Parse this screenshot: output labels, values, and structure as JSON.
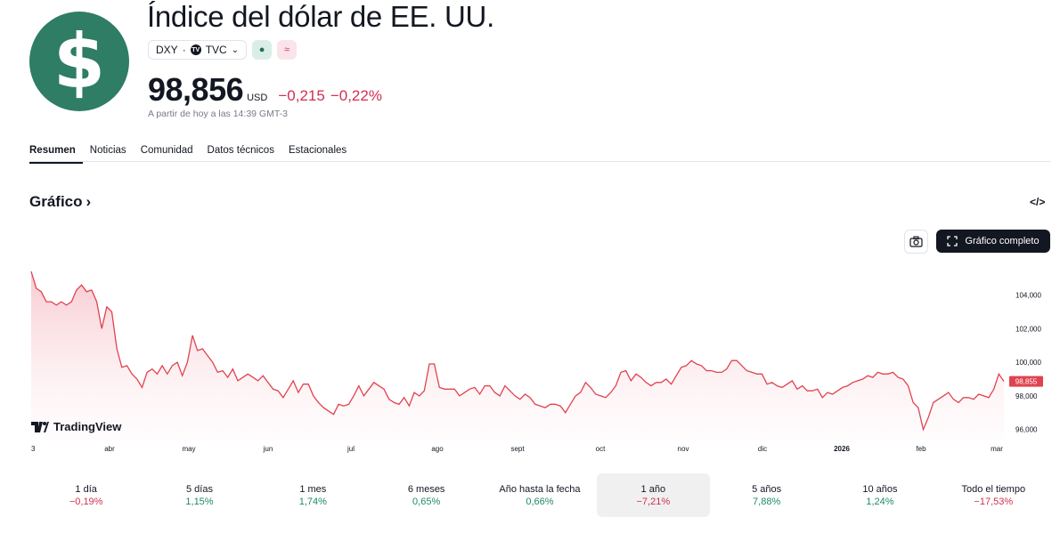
{
  "header": {
    "logo_glyph": "$",
    "title": "Índice del dólar de EE. UU.",
    "symbol": "DXY",
    "separator": "·",
    "exchange": "TVC",
    "tv_glyph": "TV",
    "badge_market": "●",
    "badge_delayed": "≈",
    "price": "98,856",
    "currency": "USD",
    "change_abs": "−0,215",
    "change_pct": "−0,22%",
    "timestamp": "A partir de hoy a las 14:39 GMT-3"
  },
  "tabs": [
    "Resumen",
    "Noticias",
    "Comunidad",
    "Datos técnicos",
    "Estacionales"
  ],
  "chart_section": {
    "title": "Gráfico",
    "title_arrow": "›",
    "embed_icon": "</>",
    "full_chart_label": "Gráfico completo",
    "brand": "TradingView"
  },
  "chart_data": {
    "type": "area",
    "series": [
      {
        "values": [
          105.4,
          104.4,
          104.2,
          103.6,
          103.6,
          103.4,
          103.6,
          103.4,
          103.6,
          104.3,
          104.6,
          104.2,
          104.3,
          103.6,
          102.0,
          103.3,
          103.0,
          100.8,
          99.7,
          99.8,
          99.3,
          99.0,
          98.5,
          99.4,
          99.6,
          99.3,
          99.8,
          99.3,
          99.8,
          100.0,
          99.2,
          100.0,
          101.6,
          100.7,
          100.8,
          100.4,
          100.0,
          99.4,
          99.5,
          99.1,
          99.6,
          98.9,
          99.1,
          99.3,
          99.1,
          98.9,
          99.2,
          98.8,
          98.4,
          98.3,
          97.9,
          98.4,
          98.9,
          98.2,
          98.7,
          98.7,
          98.0,
          97.6,
          97.3,
          97.1,
          96.9,
          97.5,
          97.4,
          97.5,
          98.0,
          98.6,
          98.0,
          98.4,
          98.8,
          98.6,
          98.4,
          97.8,
          97.6,
          97.5,
          97.9,
          97.4,
          98.2,
          98.0,
          98.3,
          99.9,
          99.9,
          98.5,
          98.4,
          98.4,
          98.4,
          98.0,
          98.2,
          98.4,
          98.5,
          98.1,
          98.6,
          98.6,
          98.2,
          98.0,
          98.6,
          98.3,
          98.0,
          97.8,
          98.1,
          97.9,
          97.5,
          97.4,
          97.3,
          97.5,
          97.5,
          97.4,
          97.0,
          97.5,
          98.0,
          98.2,
          98.8,
          98.5,
          98.1,
          98.0,
          97.9,
          98.2,
          98.6,
          99.4,
          99.5,
          98.9,
          99.3,
          99.1,
          98.8,
          98.6,
          98.8,
          98.8,
          99.0,
          98.7,
          99.2,
          99.7,
          99.8,
          100.1,
          99.9,
          99.8,
          99.5,
          99.5,
          99.4,
          99.4,
          99.6,
          100.1,
          100.1,
          99.8,
          99.5,
          99.4,
          99.3,
          99.3,
          98.7,
          98.8,
          98.6,
          98.5,
          98.7,
          98.9,
          98.4,
          98.6,
          98.3,
          98.3,
          98.4,
          97.9,
          98.2,
          98.1,
          98.3,
          98.5,
          98.6,
          98.8,
          98.9,
          99.0,
          99.2,
          99.1,
          99.4,
          99.3,
          99.3,
          99.4,
          99.1,
          99.0,
          98.6,
          97.6,
          97.3,
          96.0,
          96.7,
          97.6,
          97.8,
          98.0,
          98.2,
          97.8,
          97.6,
          97.9,
          97.9,
          97.8,
          98.1,
          98.0,
          97.9,
          98.4,
          99.3,
          98.86
        ]
      }
    ],
    "x_tick_labels": [
      "3",
      "abr",
      "may",
      "jun",
      "jul",
      "ago",
      "sept",
      "oct",
      "nov",
      "dic",
      "2026",
      "feb",
      "mar"
    ],
    "y_tick_labels": [
      "104,000",
      "102,000",
      "100,000",
      "98,000",
      "96,000"
    ],
    "ylim": [
      95.4,
      106.2
    ],
    "last_value_label": "98,855",
    "line_color": "#e0434f",
    "grid": false
  },
  "periods": [
    {
      "label": "1 día",
      "value": "−0,19%",
      "sign": "neg"
    },
    {
      "label": "5 días",
      "value": "1,15%",
      "sign": "pos"
    },
    {
      "label": "1 mes",
      "value": "1,74%",
      "sign": "pos"
    },
    {
      "label": "6 meses",
      "value": "0,65%",
      "sign": "pos"
    },
    {
      "label": "Año hasta la fecha",
      "value": "0,66%",
      "sign": "pos"
    },
    {
      "label": "1 año",
      "value": "−7,21%",
      "sign": "neg",
      "selected": true
    },
    {
      "label": "5 años",
      "value": "7,88%",
      "sign": "pos"
    },
    {
      "label": "10 años",
      "value": "1,24%",
      "sign": "pos"
    },
    {
      "label": "Todo el tiempo",
      "value": "−17,53%",
      "sign": "neg"
    }
  ],
  "colors": {
    "logo_bg": "#2e7d64",
    "negative": "#d0304f",
    "positive": "#1e8a64"
  }
}
